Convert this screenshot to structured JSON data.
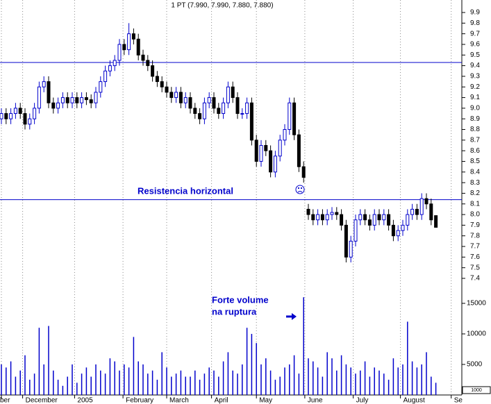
{
  "chart_data": {
    "type": "candlestick",
    "title": "1 PT (7.990, 7.990, 7.880, 7.880)",
    "x": [
      0,
      2,
      4,
      6,
      8,
      10,
      12,
      14,
      16,
      18,
      20,
      22,
      24,
      26,
      28,
      30,
      32,
      34,
      36,
      38,
      40,
      42,
      44,
      46,
      48,
      50,
      52,
      54,
      56,
      58,
      60,
      62,
      64,
      66,
      68,
      70,
      72,
      74,
      76,
      78,
      80,
      82,
      84,
      86,
      88,
      90,
      92,
      94,
      96,
      98,
      100,
      102,
      104,
      106,
      108,
      110,
      112,
      114,
      116,
      118,
      120,
      122,
      124,
      126,
      128,
      130,
      132,
      134,
      136,
      138,
      140,
      142,
      144,
      146,
      148,
      150,
      152,
      154,
      156,
      158,
      160,
      162,
      164,
      166,
      168,
      170,
      172,
      174,
      176,
      178,
      180,
      182,
      184
    ],
    "open": [
      8.9,
      8.95,
      8.9,
      8.95,
      9.0,
      8.95,
      8.85,
      8.9,
      9.0,
      9.2,
      9.25,
      9.05,
      9.0,
      9.05,
      9.1,
      9.05,
      9.1,
      9.05,
      9.1,
      9.08,
      9.05,
      9.15,
      9.25,
      9.35,
      9.4,
      9.45,
      9.6,
      9.55,
      9.7,
      9.65,
      9.5,
      9.45,
      9.4,
      9.3,
      9.25,
      9.2,
      9.15,
      9.1,
      9.15,
      9.05,
      9.1,
      9.0,
      8.95,
      8.9,
      9.05,
      9.1,
      9.0,
      8.95,
      9.05,
      9.2,
      9.1,
      8.95,
      8.95,
      9.05,
      8.7,
      8.5,
      8.65,
      8.6,
      8.4,
      8.55,
      8.7,
      8.8,
      9.05,
      8.75,
      8.45,
      8.05,
      8.0,
      7.95,
      8.0,
      7.95,
      8.0,
      8.02,
      8.0,
      7.9,
      7.6,
      7.75,
      7.95,
      8.0,
      7.95,
      7.9,
      8.0,
      7.95,
      8.0,
      7.9,
      7.8,
      7.85,
      7.9,
      8.0,
      8.05,
      8.0,
      8.15,
      8.1,
      7.99
    ],
    "high": [
      9.0,
      9.0,
      9.0,
      9.05,
      9.05,
      9.0,
      8.95,
      9.05,
      9.25,
      9.3,
      9.3,
      9.1,
      9.1,
      9.15,
      9.15,
      9.15,
      9.15,
      9.15,
      9.15,
      9.13,
      9.2,
      9.3,
      9.4,
      9.45,
      9.5,
      9.65,
      9.65,
      9.8,
      9.75,
      9.7,
      9.55,
      9.5,
      9.45,
      9.35,
      9.3,
      9.25,
      9.2,
      9.2,
      9.2,
      9.15,
      9.15,
      9.05,
      9.0,
      9.1,
      9.15,
      9.15,
      9.05,
      9.1,
      9.25,
      9.25,
      9.15,
      9.0,
      9.1,
      9.1,
      8.75,
      8.7,
      8.7,
      8.65,
      8.6,
      8.75,
      8.85,
      9.1,
      9.1,
      8.8,
      8.5,
      8.1,
      8.05,
      8.05,
      8.05,
      8.05,
      8.07,
      8.07,
      8.05,
      7.95,
      7.8,
      8.0,
      8.05,
      8.05,
      8.0,
      8.05,
      8.05,
      8.05,
      8.05,
      7.95,
      7.9,
      7.95,
      8.05,
      8.1,
      8.1,
      8.2,
      8.2,
      8.15,
      7.99
    ],
    "low": [
      8.85,
      8.85,
      8.85,
      8.9,
      8.9,
      8.8,
      8.8,
      8.85,
      8.95,
      9.15,
      9.0,
      8.95,
      8.95,
      9.0,
      9.0,
      9.0,
      9.0,
      9.0,
      9.03,
      9.0,
      9.0,
      9.1,
      9.2,
      9.3,
      9.35,
      9.4,
      9.5,
      9.5,
      9.6,
      9.45,
      9.4,
      9.35,
      9.25,
      9.2,
      9.15,
      9.1,
      9.05,
      9.05,
      9.0,
      9.0,
      8.95,
      8.9,
      8.85,
      8.85,
      9.0,
      8.95,
      8.9,
      8.9,
      9.0,
      9.05,
      8.9,
      8.9,
      8.9,
      8.65,
      8.45,
      8.45,
      8.55,
      8.35,
      8.35,
      8.5,
      8.65,
      8.75,
      8.7,
      8.4,
      8.3,
      7.95,
      7.9,
      7.9,
      7.9,
      7.9,
      7.95,
      7.95,
      7.85,
      7.55,
      7.55,
      7.7,
      7.9,
      7.9,
      7.85,
      7.85,
      7.9,
      7.9,
      7.85,
      7.75,
      7.75,
      7.8,
      7.85,
      7.95,
      7.95,
      7.95,
      8.05,
      7.9,
      7.88
    ],
    "close": [
      8.95,
      8.9,
      8.95,
      9.0,
      8.95,
      8.85,
      8.9,
      9.0,
      9.2,
      9.25,
      9.05,
      9.0,
      9.05,
      9.1,
      9.05,
      9.1,
      9.05,
      9.1,
      9.08,
      9.05,
      9.15,
      9.25,
      9.35,
      9.4,
      9.45,
      9.6,
      9.55,
      9.7,
      9.65,
      9.5,
      9.45,
      9.4,
      9.3,
      9.25,
      9.2,
      9.15,
      9.1,
      9.15,
      9.05,
      9.1,
      9.0,
      8.95,
      8.9,
      9.05,
      9.1,
      9.0,
      8.95,
      9.05,
      9.2,
      9.1,
      8.95,
      8.95,
      9.05,
      8.7,
      8.5,
      8.65,
      8.6,
      8.4,
      8.55,
      8.7,
      8.8,
      9.05,
      8.75,
      8.45,
      8.35,
      8.0,
      7.95,
      8.0,
      7.95,
      8.0,
      8.02,
      8.0,
      7.9,
      7.6,
      7.75,
      7.95,
      8.0,
      7.95,
      7.9,
      8.0,
      7.95,
      8.0,
      7.9,
      7.8,
      7.85,
      7.9,
      8.0,
      8.05,
      8.0,
      8.15,
      8.1,
      7.95,
      7.88
    ],
    "volume": [
      5000,
      4500,
      5500,
      3000,
      4000,
      6500,
      2500,
      3500,
      11000,
      5000,
      11300,
      4000,
      2500,
      1500,
      3000,
      5000,
      2000,
      3500,
      4500,
      3000,
      5000,
      4000,
      3500,
      6000,
      5500,
      4000,
      5000,
      4500,
      9500,
      5500,
      5000,
      3500,
      4000,
      2500,
      7000,
      4500,
      3000,
      3500,
      4000,
      3000,
      3000,
      4000,
      2500,
      3500,
      4500,
      4000,
      3000,
      5500,
      7000,
      4000,
      3500,
      5000,
      11000,
      10000,
      8500,
      5000,
      6000,
      4000,
      2500,
      3000,
      4500,
      5000,
      6500,
      3500,
      16000,
      6000,
      5500,
      4500,
      3000,
      7000,
      6000,
      4000,
      6500,
      5000,
      4500,
      3500,
      4000,
      5500,
      3000,
      4500,
      4000,
      3500,
      2500,
      6000,
      4500,
      5000,
      12000,
      5500,
      4500,
      5000,
      7000,
      3000,
      2000
    ],
    "up_color": "#0000cc",
    "down_color": "#000000",
    "volume_color": "#0000cc",
    "xlim": [
      0,
      195
    ],
    "xticks": [
      {
        "value": 0,
        "label": "ber"
      },
      {
        "value": 9,
        "label": "December"
      },
      {
        "value": 31,
        "label": "2005"
      },
      {
        "value": 51.5,
        "label": "February"
      },
      {
        "value": 70,
        "label": "March"
      },
      {
        "value": 89,
        "label": "April"
      },
      {
        "value": 108,
        "label": "May"
      },
      {
        "value": 128.5,
        "label": "June"
      },
      {
        "value": 149,
        "label": "July"
      },
      {
        "value": 169,
        "label": "August"
      },
      {
        "value": 190.5,
        "label": "Se"
      }
    ],
    "ylim": [
      7.3,
      10.0
    ],
    "yticks": [
      7.4,
      7.5,
      7.6,
      7.7,
      7.8,
      7.9,
      {
        "value": 8,
        "label": "8.0"
      },
      8.1,
      8.2,
      8.3,
      8.4,
      8.5,
      8.6,
      8.7,
      8.8,
      8.9,
      {
        "value": 9,
        "label": "9.0"
      },
      9.1,
      9.2,
      9.3,
      9.4,
      9.5,
      9.6,
      9.7,
      9.8,
      9.9
    ],
    "y2lim": [
      0,
      17000
    ],
    "y2ticks": [
      5000,
      10000,
      15000
    ],
    "volume_unit_label": "1000",
    "reference_lines": [
      9.43,
      8.14
    ],
    "reference_color": "#0000cc",
    "annotations": [
      "Resistencia horizontal",
      "Forte volume",
      "na ruptura"
    ],
    "grid": true
  }
}
